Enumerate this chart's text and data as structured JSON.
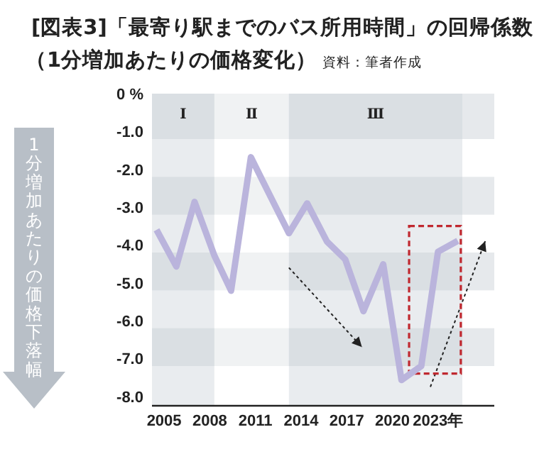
{
  "chart_data": {
    "type": "line",
    "title": "[図表3]「最寄り駅までのバス所用時間」の回帰係数",
    "subtitle": "（1分増加あたりの価格変化）",
    "ylabel": "1分増加あたりの価格下落幅",
    "annotations": [
      "資料：筆者作成"
    ],
    "x": [
      2004.5,
      2005.8,
      2007.0,
      2008.3,
      2009.4,
      2010.7,
      2012.0,
      2013.2,
      2014.4,
      2015.7,
      2016.9,
      2018.1,
      2019.4,
      2020.6,
      2021.9,
      2023.0,
      2024.3
    ],
    "series": [
      {
        "color": "#bab4dc",
        "values": [
          -3.6,
          -4.57,
          -2.86,
          -4.28,
          -5.21,
          -1.68,
          -2.73,
          -3.69,
          -2.9,
          -3.91,
          -4.38,
          -5.75,
          -4.51,
          -7.57,
          -7.2,
          -4.18,
          -3.89
        ]
      }
    ],
    "xlim": [
      2004.2,
      2026.7
    ],
    "xticks": [
      2005,
      2008,
      2011,
      2014,
      2017,
      2020,
      {
        "value": 2023,
        "label": "2023年"
      }
    ],
    "ylim": [
      -8.25,
      0
    ],
    "yticks": [
      {
        "value": 0,
        "label": "0 %"
      },
      {
        "value": -1,
        "label": "-1.0"
      },
      {
        "value": -2,
        "label": "-2.0"
      },
      {
        "value": -3,
        "label": "-3.0"
      },
      {
        "value": -4,
        "label": "-4.0"
      },
      {
        "value": -5,
        "label": "-5.0"
      },
      {
        "value": -6,
        "label": "-6.0"
      },
      {
        "value": -7,
        "label": "-7.0"
      },
      {
        "value": -8,
        "label": "-8.0"
      }
    ],
    "bands": [
      {
        "axis": "y",
        "from": 0,
        "to": -1.2,
        "color": "#e6e9ec"
      },
      {
        "axis": "y",
        "from": -2.2,
        "to": -3.2,
        "color": "#e6e9ec"
      },
      {
        "axis": "y",
        "from": -4.2,
        "to": -5.2,
        "color": "#e6e9ec"
      },
      {
        "axis": "y",
        "from": -6.2,
        "to": -7.2,
        "color": "#e6e9ec"
      },
      {
        "axis": "x",
        "from": 2004.2,
        "to": 2008.3,
        "label": "Ⅰ",
        "color": "#c8d0d8"
      },
      {
        "axis": "x",
        "from": 2008.3,
        "to": 2013.2,
        "label": "Ⅱ",
        "color": "#ffffff"
      },
      {
        "axis": "x",
        "from": 2013.2,
        "to": 2024.6,
        "label": "Ⅲ",
        "color": "#c8d0d8"
      }
    ],
    "marker": "none",
    "line_style": "solid"
  }
}
